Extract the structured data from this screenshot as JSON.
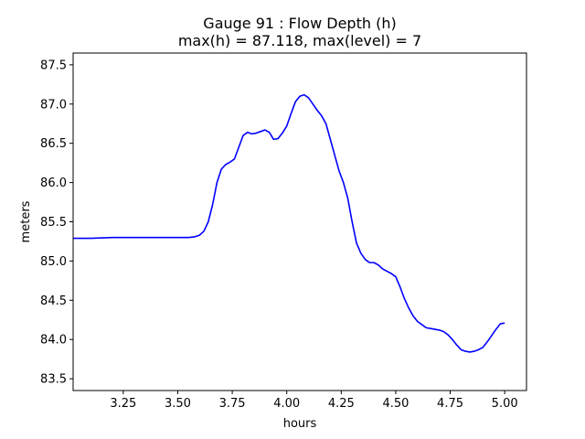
{
  "chart_data": {
    "type": "line",
    "title": "Gauge 91 : Flow Depth (h)",
    "subtitle": "max(h) =  87.118,    max(level) = 7",
    "xlabel": "hours",
    "ylabel": "meters",
    "xlim": [
      3.02,
      5.1
    ],
    "ylim": [
      83.35,
      87.65
    ],
    "xticks": [
      3.25,
      3.5,
      3.75,
      4.0,
      4.25,
      4.5,
      4.75,
      5.0
    ],
    "xtick_labels": [
      "3.25",
      "3.50",
      "3.75",
      "4.00",
      "4.25",
      "4.50",
      "4.75",
      "5.00"
    ],
    "yticks": [
      83.5,
      84.0,
      84.5,
      85.0,
      85.5,
      86.0,
      86.5,
      87.0,
      87.5
    ],
    "ytick_labels": [
      "83.5",
      "84.0",
      "84.5",
      "85.0",
      "85.5",
      "86.0",
      "86.5",
      "87.0",
      "87.5"
    ],
    "grid": false,
    "color": "#0000ff",
    "series": [
      {
        "x": [
          3.02,
          3.1,
          3.2,
          3.3,
          3.4,
          3.5,
          3.55,
          3.58,
          3.6,
          3.62,
          3.64,
          3.66,
          3.68,
          3.7,
          3.72,
          3.74,
          3.76,
          3.78,
          3.8,
          3.82,
          3.84,
          3.86,
          3.88,
          3.9,
          3.92,
          3.94,
          3.96,
          3.98,
          4.0,
          4.02,
          4.04,
          4.06,
          4.08,
          4.1,
          4.12,
          4.14,
          4.16,
          4.18,
          4.2,
          4.22,
          4.24,
          4.26,
          4.28,
          4.3,
          4.32,
          4.34,
          4.36,
          4.38,
          4.4,
          4.42,
          4.44,
          4.46,
          4.48,
          4.5,
          4.52,
          4.54,
          4.56,
          4.58,
          4.6,
          4.62,
          4.64,
          4.66,
          4.68,
          4.7,
          4.72,
          4.74,
          4.76,
          4.78,
          4.8,
          4.82,
          4.84,
          4.86,
          4.88,
          4.9,
          4.92,
          4.94,
          4.96,
          4.98,
          5.0
        ],
        "y": [
          85.29,
          85.29,
          85.3,
          85.3,
          85.3,
          85.3,
          85.3,
          85.31,
          85.33,
          85.38,
          85.5,
          85.72,
          86.0,
          86.17,
          86.23,
          86.26,
          86.3,
          86.45,
          86.6,
          86.64,
          86.62,
          86.63,
          86.65,
          86.67,
          86.64,
          86.55,
          86.56,
          86.63,
          86.72,
          86.88,
          87.03,
          87.1,
          87.118,
          87.08,
          87.0,
          86.92,
          86.85,
          86.75,
          86.55,
          86.35,
          86.15,
          86.0,
          85.8,
          85.5,
          85.23,
          85.1,
          85.02,
          84.98,
          84.98,
          84.95,
          84.9,
          84.87,
          84.84,
          84.8,
          84.67,
          84.52,
          84.4,
          84.3,
          84.23,
          84.19,
          84.15,
          84.14,
          84.13,
          84.12,
          84.1,
          84.06,
          84.0,
          83.93,
          83.87,
          83.85,
          83.84,
          83.85,
          83.87,
          83.9,
          83.97,
          84.05,
          84.13,
          84.2,
          84.21
        ]
      }
    ]
  }
}
